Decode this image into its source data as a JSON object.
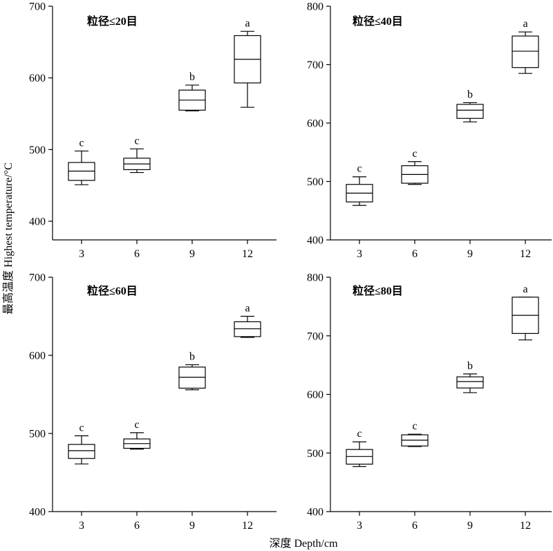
{
  "figure": {
    "ylabel": "最高温度 Highest temperature/°C",
    "xlabel": "深度 Depth/cm"
  },
  "style": {
    "line_color": "#000000",
    "box_fill": "#ffffff",
    "background": "#ffffff"
  },
  "chart_data": [
    {
      "type": "box",
      "title": "粒径≤20目",
      "categories": [
        "3",
        "6",
        "9",
        "12"
      ],
      "yticks": [
        400,
        500,
        600,
        700
      ],
      "ylim": [
        374,
        700
      ],
      "grid": false,
      "boxes": [
        {
          "min": 451,
          "q1": 457,
          "median": 470,
          "q3": 482,
          "max": 498,
          "letter": "c"
        },
        {
          "min": 468,
          "q1": 472,
          "median": 480,
          "q3": 488,
          "max": 501,
          "letter": "c"
        },
        {
          "min": 554,
          "q1": 555,
          "median": 569,
          "q3": 583,
          "max": 590,
          "letter": "b"
        },
        {
          "min": 559,
          "q1": 593,
          "median": 626,
          "q3": 659,
          "max": 665,
          "letter": "a"
        }
      ]
    },
    {
      "type": "box",
      "title": "粒径≤40目",
      "categories": [
        "3",
        "6",
        "9",
        "12"
      ],
      "yticks": [
        400,
        500,
        600,
        700,
        800
      ],
      "ylim": [
        400,
        800
      ],
      "grid": false,
      "boxes": [
        {
          "min": 459,
          "q1": 465,
          "median": 480,
          "q3": 495,
          "max": 508,
          "letter": "c"
        },
        {
          "min": 495,
          "q1": 497,
          "median": 512,
          "q3": 527,
          "max": 534,
          "letter": "c"
        },
        {
          "min": 602,
          "q1": 608,
          "median": 622,
          "q3": 632,
          "max": 635,
          "letter": "b"
        },
        {
          "min": 685,
          "q1": 695,
          "median": 723,
          "q3": 749,
          "max": 756,
          "letter": "a"
        }
      ]
    },
    {
      "type": "box",
      "title": "粒径≤60目",
      "categories": [
        "3",
        "6",
        "9",
        "12"
      ],
      "yticks": [
        400,
        500,
        600,
        700
      ],
      "ylim": [
        400,
        700
      ],
      "grid": false,
      "boxes": [
        {
          "min": 461,
          "q1": 468,
          "median": 478,
          "q3": 486,
          "max": 497,
          "letter": "c"
        },
        {
          "min": 480,
          "q1": 481,
          "median": 487,
          "q3": 493,
          "max": 501,
          "letter": "c"
        },
        {
          "min": 556,
          "q1": 558,
          "median": 572,
          "q3": 585,
          "max": 588,
          "letter": "b"
        },
        {
          "min": 623,
          "q1": 624,
          "median": 634,
          "q3": 643,
          "max": 650,
          "letter": "a"
        }
      ]
    },
    {
      "type": "box",
      "title": "粒径≤80目",
      "categories": [
        "3",
        "6",
        "9",
        "12"
      ],
      "yticks": [
        400,
        500,
        600,
        700,
        800
      ],
      "ylim": [
        400,
        800
      ],
      "grid": false,
      "boxes": [
        {
          "min": 477,
          "q1": 481,
          "median": 494,
          "q3": 506,
          "max": 519,
          "letter": "c"
        },
        {
          "min": 511,
          "q1": 512,
          "median": 522,
          "q3": 531,
          "max": 532,
          "letter": "c"
        },
        {
          "min": 603,
          "q1": 611,
          "median": 622,
          "q3": 630,
          "max": 635,
          "letter": "b"
        },
        {
          "min": 693,
          "q1": 704,
          "median": 735,
          "q3": 766,
          "max": 766,
          "letter": "a"
        }
      ]
    }
  ]
}
